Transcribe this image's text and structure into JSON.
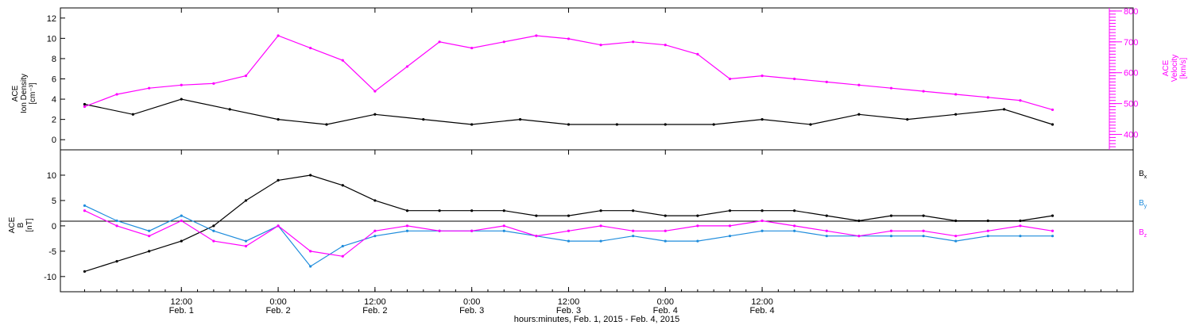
{
  "chart_data": [
    {
      "type": "scatter",
      "ylabel_lines": [
        "ACE",
        "Ion Density",
        "[cm⁻³]"
      ],
      "ylabel2_lines": [
        "ACE",
        "Velocity",
        "[km/s]"
      ],
      "ylim": [
        -1,
        13
      ],
      "yticks": [
        "0",
        "2",
        "4",
        "6",
        "8",
        "10",
        "12"
      ],
      "ylim2": [
        350,
        810
      ],
      "yticks2": [
        "400",
        "500",
        "600",
        "700",
        "800"
      ],
      "series": [
        {
          "color": "#000000",
          "axis": "left",
          "x": [
            0,
            6,
            12,
            18,
            24,
            30,
            36,
            42,
            48,
            54,
            60,
            66,
            72,
            78,
            84,
            90,
            96,
            102,
            108,
            114,
            120
          ],
          "values": [
            3.5,
            2.5,
            4.0,
            3.0,
            2.0,
            1.5,
            2.5,
            2.0,
            1.5,
            2.0,
            1.5,
            1.5,
            1.5,
            1.5,
            2.0,
            1.5,
            2.5,
            2.0,
            2.5,
            3.0,
            1.5
          ]
        },
        {
          "color": "#ff00ff",
          "axis": "right",
          "x": [
            0,
            4,
            8,
            12,
            16,
            20,
            24,
            28,
            32,
            36,
            40,
            44,
            48,
            52,
            56,
            60,
            64,
            68,
            72,
            76,
            80,
            84,
            88,
            92,
            96,
            100,
            104,
            108,
            112,
            116,
            120
          ],
          "values": [
            490,
            530,
            550,
            560,
            565,
            590,
            720,
            680,
            640,
            540,
            620,
            700,
            680,
            700,
            720,
            710,
            690,
            700,
            690,
            660,
            580,
            590,
            580,
            570,
            560,
            550,
            540,
            530,
            520,
            510,
            480
          ]
        }
      ]
    },
    {
      "type": "scatter",
      "ylabel_lines": [
        "ACE",
        "B",
        "[nT]"
      ],
      "ylim": [
        -13,
        15
      ],
      "yticks": [
        "-10",
        "-5",
        "0",
        "5",
        "10"
      ],
      "legend": [
        {
          "label": "Bx",
          "main": "B",
          "sub": "x",
          "color": "#000000"
        },
        {
          "label": "By",
          "main": "B",
          "sub": "y",
          "color": "#1e8cdc"
        },
        {
          "label": "Bz",
          "main": "B",
          "sub": "z",
          "color": "#ff00ff"
        }
      ],
      "series": [
        {
          "name": "Bx",
          "color": "#000000",
          "x": [
            0,
            4,
            8,
            12,
            16,
            20,
            24,
            28,
            32,
            36,
            40,
            44,
            48,
            52,
            56,
            60,
            64,
            68,
            72,
            76,
            80,
            84,
            88,
            92,
            96,
            100,
            104,
            108,
            112,
            116,
            120
          ],
          "values": [
            -9,
            -7,
            -5,
            -3,
            0,
            5,
            9,
            10,
            8,
            5,
            3,
            3,
            3,
            3,
            2,
            2,
            3,
            3,
            2,
            2,
            3,
            3,
            3,
            2,
            1,
            2,
            2,
            1,
            1,
            1,
            2
          ]
        },
        {
          "name": "By",
          "color": "#1e8cdc",
          "x": [
            0,
            4,
            8,
            12,
            16,
            20,
            24,
            28,
            32,
            36,
            40,
            44,
            48,
            52,
            56,
            60,
            64,
            68,
            72,
            76,
            80,
            84,
            88,
            92,
            96,
            100,
            104,
            108,
            112,
            116,
            120
          ],
          "values": [
            4,
            1,
            -1,
            2,
            -1,
            -3,
            0,
            -8,
            -4,
            -2,
            -1,
            -1,
            -1,
            -1,
            -2,
            -3,
            -3,
            -2,
            -3,
            -3,
            -2,
            -1,
            -1,
            -2,
            -2,
            -2,
            -2,
            -3,
            -2,
            -2,
            -2
          ]
        },
        {
          "name": "Bz",
          "color": "#ff00ff",
          "x": [
            0,
            4,
            8,
            12,
            16,
            20,
            24,
            28,
            32,
            36,
            40,
            44,
            48,
            52,
            56,
            60,
            64,
            68,
            72,
            76,
            80,
            84,
            88,
            92,
            96,
            100,
            104,
            108,
            112,
            116,
            120
          ],
          "values": [
            3,
            0,
            -2,
            1,
            -3,
            -4,
            0,
            -5,
            -6,
            -1,
            0,
            -1,
            -1,
            0,
            -2,
            -1,
            0,
            -1,
            -1,
            0,
            0,
            1,
            0,
            -1,
            -2,
            -1,
            -1,
            -2,
            -1,
            0,
            -1
          ]
        }
      ]
    }
  ],
  "x_axis": {
    "title": "hours:minutes, Feb.  1, 2015 - Feb.  4, 2015",
    "range_hours": [
      -3,
      130
    ],
    "ticks": [
      {
        "hour": 12,
        "time": "12:00",
        "date": "Feb. 1"
      },
      {
        "hour": 24,
        "time": "0:00",
        "date": "Feb. 2"
      },
      {
        "hour": 36,
        "time": "12:00",
        "date": "Feb. 2"
      },
      {
        "hour": 48,
        "time": "0:00",
        "date": "Feb. 3"
      },
      {
        "hour": 60,
        "time": "12:00",
        "date": "Feb. 3"
      },
      {
        "hour": 72,
        "time": "0:00",
        "date": "Feb. 4"
      },
      {
        "hour": 84,
        "time": "12:00",
        "date": "Feb. 4"
      }
    ]
  }
}
